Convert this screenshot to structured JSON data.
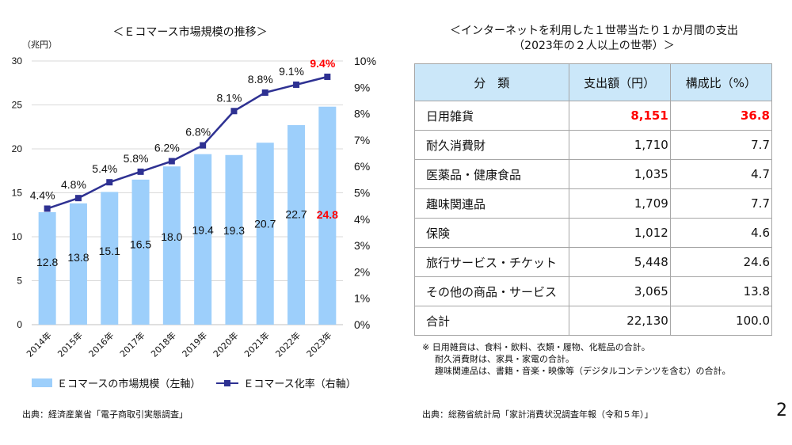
{
  "left_panel": {
    "title": "＜Ｅコマース市場規模の推移＞",
    "unit_label": "（兆円）",
    "legend": {
      "bar_label": "Ｅコマースの市場規模（左軸）",
      "line_label": "Ｅコマース化率（右軸）"
    },
    "source": "出典：経済産業省「電子商取引実態調査」"
  },
  "chart_data": {
    "type": "bar",
    "title": "＜Ｅコマース市場規模の推移＞",
    "xlabel": "",
    "ylabel": "（兆円）",
    "categories": [
      "2014年",
      "2015年",
      "2016年",
      "2017年",
      "2018年",
      "2019年",
      "2020年",
      "2021年",
      "2022年",
      "2023年"
    ],
    "series": [
      {
        "name": "Ｅコマースの市場規模（左軸）",
        "type": "bar",
        "axis": "left",
        "color": "#9dcffb",
        "values": [
          12.8,
          13.8,
          15.1,
          16.5,
          18.0,
          19.4,
          19.3,
          20.7,
          22.7,
          24.8
        ],
        "labels": [
          "12.8",
          "13.8",
          "15.1",
          "16.5",
          "18.0",
          "19.4",
          "19.3",
          "20.7",
          "22.7",
          "24.8"
        ]
      },
      {
        "name": "Ｅコマース化率（右軸）",
        "type": "line",
        "axis": "right",
        "color": "#2e3192",
        "values": [
          4.4,
          4.8,
          5.4,
          5.8,
          6.2,
          6.8,
          8.1,
          8.8,
          9.1,
          9.4
        ],
        "labels": [
          "4.4%",
          "4.8%",
          "5.4%",
          "5.8%",
          "6.2%",
          "6.8%",
          "8.1%",
          "8.8%",
          "9.1%",
          "9.4%"
        ]
      }
    ],
    "highlight_index": 9,
    "highlight_color": "#ff0000",
    "ylim": [
      0,
      30
    ],
    "yticks": [
      0,
      5,
      10,
      15,
      20,
      25,
      30
    ],
    "y2lim": [
      0,
      10
    ],
    "y2ticks": [
      "0%",
      "1%",
      "2%",
      "3%",
      "4%",
      "5%",
      "6%",
      "7%",
      "8%",
      "9%",
      "10%"
    ],
    "grid": true,
    "legend_position": "bottom"
  },
  "right_panel": {
    "title_line1": "＜インターネットを利用した１世帯当たり１か月間の支出",
    "title_line2": "（2023年の２人以上の世帯）＞",
    "table": {
      "headers": [
        "分　類",
        "支出額（円）",
        "構成比（%）"
      ],
      "rows": [
        {
          "category": "日用雑貨",
          "amount": "8,151",
          "ratio": "36.8",
          "highlight": true
        },
        {
          "category": "耐久消費財",
          "amount": "1,710",
          "ratio": "7.7",
          "highlight": false
        },
        {
          "category": "医薬品・健康食品",
          "amount": "1,035",
          "ratio": "4.7",
          "highlight": false
        },
        {
          "category": "趣味関連品",
          "amount": "1,709",
          "ratio": "7.7",
          "highlight": false
        },
        {
          "category": "保険",
          "amount": "1,012",
          "ratio": "4.6",
          "highlight": false
        },
        {
          "category": "旅行サービス・チケット",
          "amount": "5,448",
          "ratio": "24.6",
          "highlight": false
        },
        {
          "category": "その他の商品・サービス",
          "amount": "3,065",
          "ratio": "13.8",
          "highlight": false
        },
        {
          "category": "合計",
          "amount": "22,130",
          "ratio": "100.0",
          "highlight": false
        }
      ]
    },
    "notes": [
      "※ 日用雑貨は、食料・飲料、衣類・履物、化粧品の合計。",
      "耐久消費財は、家具・家電の合計。",
      "趣味関連品は、書籍・音楽・映像等（デジタルコンテンツを含む）の合計。"
    ],
    "source": "出典：総務省統計局「家計消費状況調査年報（令和５年）」"
  },
  "page_number": "2"
}
